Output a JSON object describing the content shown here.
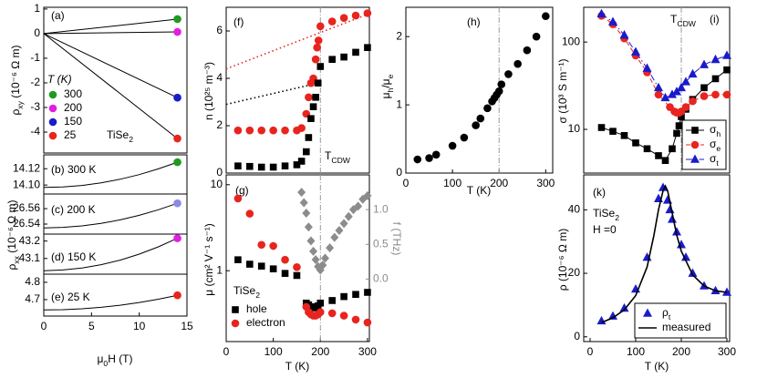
{
  "chart_data": [
    {
      "type": "line",
      "label": "(a)",
      "xlim": [
        0,
        15
      ],
      "ylim": [
        -4.85,
        1.07
      ],
      "yticks": [
        1,
        0,
        -1,
        -2,
        -3,
        -4
      ],
      "ylabel": [
        "ρ",
        "xy",
        " (10⁻⁶ Ω m)"
      ],
      "legend_title": "T (K)",
      "annotations": [
        [
          "TiSe",
          "2"
        ]
      ],
      "series": [
        {
          "name": "300",
          "color": "#1f9a1f",
          "line_color": "#000",
          "marker": "circle",
          "end_marker": true,
          "line": "solid",
          "x": [
            0,
            14
          ],
          "values": [
            0,
            0.59
          ]
        },
        {
          "name": "200",
          "color": "#e020e0",
          "line_color": "#000",
          "marker": "circle",
          "end_marker": true,
          "line": "solid",
          "x": [
            0,
            14
          ],
          "values": [
            0,
            0.07
          ]
        },
        {
          "name": "150",
          "color": "#1a1acc",
          "line_color": "#000",
          "marker": "circle",
          "end_marker": true,
          "line": "solid",
          "x": [
            0,
            14
          ],
          "values": [
            0,
            -2.6
          ]
        },
        {
          "name": "25",
          "color": "#e8241f",
          "line_color": "#000",
          "marker": "circle",
          "end_marker": true,
          "line": "solid",
          "x": [
            0,
            14
          ],
          "values": [
            0,
            -4.26
          ]
        }
      ]
    },
    {
      "type": "line",
      "label": "(b) 300 K",
      "xlim": [
        0,
        15
      ],
      "ylim": [
        14.089,
        14.137
      ],
      "yticks": [
        {
          "value": 14.1,
          "label": "14.10"
        },
        14.12
      ],
      "series": [
        {
          "color": "#1f9a1f",
          "line_color": "#000",
          "marker": "circle",
          "end_marker": true,
          "line": "solid",
          "x": [
            0,
            2,
            4,
            6,
            8,
            10,
            12,
            14
          ],
          "values": [
            14.097,
            14.0976,
            14.0995,
            14.1027,
            14.1071,
            14.1128,
            14.1198,
            14.128
          ]
        }
      ]
    },
    {
      "type": "line",
      "label": "(c) 200 K",
      "xlim": [
        0,
        15
      ],
      "ylim": [
        26.527,
        26.579
      ],
      "yticks": [
        26.54,
        26.56
      ],
      "series": [
        {
          "color": "#8a8ae8",
          "line_color": "#000",
          "marker": "circle",
          "end_marker": true,
          "line": "solid",
          "x": [
            0,
            2,
            4,
            6,
            8,
            10,
            12,
            14
          ],
          "values": [
            26.535,
            26.5357,
            26.5376,
            26.5409,
            26.5454,
            26.5513,
            26.5585,
            26.567
          ]
        }
      ]
    },
    {
      "type": "line",
      "label": "(d) 150 K",
      "xlim": [
        0,
        15
      ],
      "ylim": [
        43.01,
        43.24
      ],
      "yticks": [
        43.1,
        43.2
      ],
      "series": [
        {
          "color": "#e020e0",
          "line_color": "#000",
          "marker": "circle",
          "end_marker": true,
          "line": "solid",
          "x": [
            0,
            2,
            4,
            6,
            8,
            10,
            12,
            14
          ],
          "values": [
            43.03,
            43.0338,
            43.0452,
            43.0642,
            43.0907,
            43.1249,
            43.1666,
            43.216
          ]
        }
      ]
    },
    {
      "type": "line",
      "label": "(e)  25 K",
      "xlim": [
        0,
        15
      ],
      "ylim": [
        4.605,
        4.847
      ],
      "yticks": [
        4.7,
        4.8
      ],
      "xticks": [
        0,
        5,
        10,
        15
      ],
      "ylabel": [
        "ρ",
        "xx",
        " (10⁻⁶ Ω m)"
      ],
      "xlabel": [
        "μ",
        "0",
        "H (T)"
      ],
      "series": [
        {
          "color": "#e8241f",
          "line_color": "#000",
          "marker": "circle",
          "end_marker": true,
          "line": "solid",
          "x": [
            0,
            2,
            4,
            6,
            8,
            10,
            12,
            14
          ],
          "values": [
            4.64,
            4.6417,
            4.6469,
            4.6556,
            4.6678,
            4.6834,
            4.7024,
            4.725
          ]
        }
      ]
    },
    {
      "type": "scatter",
      "label": "(f)",
      "xlim": [
        0,
        304
      ],
      "ylim": [
        0,
        7
      ],
      "yticks": [
        0,
        2,
        4,
        6
      ],
      "cdw_line": 200,
      "ylabel": "n (10²⁵ m⁻³)",
      "annotations": [
        [
          "T",
          "CDW"
        ]
      ],
      "series": [
        {
          "color": "#e8241f",
          "marker": "none",
          "line": "dotted",
          "x": [
            0,
            300
          ],
          "values": [
            4.4,
            6.7
          ]
        },
        {
          "color": "#000",
          "marker": "none",
          "line": "dotted",
          "x": [
            0,
            185
          ],
          "values": [
            2.9,
            3.75
          ]
        },
        {
          "color": "#e8241f",
          "marker": "circle",
          "x": [
            25,
            50,
            75,
            100,
            125,
            150,
            160,
            170,
            175,
            180,
            185,
            190,
            193,
            196,
            200,
            225,
            250,
            275,
            300
          ],
          "values": [
            1.8,
            1.8,
            1.8,
            1.8,
            1.8,
            1.8,
            1.9,
            2.5,
            3.2,
            3.8,
            4.0,
            4.8,
            5.3,
            5.6,
            6.2,
            6.4,
            6.55,
            6.65,
            6.75
          ]
        },
        {
          "color": "#000",
          "marker": "square",
          "x": [
            25,
            50,
            75,
            100,
            125,
            150,
            160,
            170,
            175,
            180,
            185,
            190,
            195,
            200,
            225,
            250,
            275,
            300
          ],
          "values": [
            0.3,
            0.28,
            0.25,
            0.25,
            0.3,
            0.35,
            0.5,
            0.9,
            1.5,
            2.3,
            2.8,
            3.2,
            3.8,
            4.5,
            4.8,
            4.9,
            5.1,
            5.3
          ]
        }
      ]
    },
    {
      "type": "scatter",
      "label": "(g)",
      "xlim": [
        0,
        304
      ],
      "ylim": [
        0.15,
        13
      ],
      "log_y": true,
      "yticks": [
        1,
        10
      ],
      "xticks": [
        0,
        100,
        200,
        300
      ],
      "cdw_line": 200,
      "y2lim": [
        -0.9,
        1.5
      ],
      "y2ticks": [
        {
          "value": 0,
          "label": "0.0"
        },
        {
          "value": 0.5,
          "label": "0.5"
        },
        {
          "value": 1,
          "label": "1.0"
        }
      ],
      "y2label": "f (THz)",
      "y2color": "#8c8c8c",
      "ylabel": "μ (cm² V⁻¹ s⁻¹)",
      "xlabel": "T (K)",
      "annotations": [
        [
          "TiSe",
          "2"
        ]
      ],
      "series": [
        {
          "name": "hole",
          "color": "#000",
          "marker": "square",
          "x": [
            25,
            50,
            75,
            100,
            125,
            150,
            170,
            175,
            180,
            185,
            190,
            195,
            200,
            225,
            250,
            275,
            300
          ],
          "values": [
            1.34,
            1.19,
            1.13,
            1.05,
            0.93,
            0.88,
            0.42,
            0.4,
            0.38,
            0.38,
            0.37,
            0.39,
            0.42,
            0.45,
            0.5,
            0.53,
            0.56
          ]
        },
        {
          "name": "electron",
          "color": "#e8241f",
          "marker": "circle",
          "x": [
            25,
            50,
            75,
            100,
            125,
            150,
            170,
            175,
            180,
            185,
            190,
            195,
            200,
            225,
            250,
            275,
            300
          ],
          "values": [
            6.9,
            4.6,
            2.0,
            1.94,
            1.34,
            1.1,
            0.38,
            0.33,
            0.31,
            0.3,
            0.3,
            0.31,
            0.33,
            0.32,
            0.3,
            0.27,
            0.25
          ]
        },
        {
          "color": "#8c8c8c",
          "marker": "diamond",
          "axis": "y2",
          "x": [
            160,
            165,
            170,
            175,
            180,
            185,
            190,
            195,
            200,
            205,
            210,
            220,
            230,
            240,
            250,
            260,
            270,
            280,
            290,
            300
          ],
          "values": [
            1.25,
            1.1,
            0.95,
            0.75,
            0.55,
            0.4,
            0.28,
            0.18,
            0.13,
            0.2,
            0.3,
            0.45,
            0.6,
            0.7,
            0.8,
            0.9,
            1.0,
            1.05,
            1.15,
            1.2
          ]
        }
      ]
    },
    {
      "type": "scatter",
      "label": "(h)",
      "xlim": [
        0,
        315
      ],
      "ylim": [
        0,
        2.43
      ],
      "yticks": [
        0,
        1,
        2
      ],
      "xticks": [
        0,
        100,
        200,
        300
      ],
      "cdw_line": 200,
      "ylabel": [
        "μ",
        "h",
        "/μ",
        "e"
      ],
      "xlabel": "T (K)",
      "series": [
        {
          "color": "#000",
          "marker": "circle",
          "x": [
            25,
            50,
            65,
            100,
            125,
            150,
            160,
            175,
            185,
            190,
            195,
            200,
            205,
            220,
            240,
            260,
            280,
            300
          ],
          "values": [
            0.2,
            0.22,
            0.27,
            0.4,
            0.52,
            0.7,
            0.8,
            0.95,
            1.05,
            1.1,
            1.15,
            1.2,
            1.3,
            1.45,
            1.6,
            1.8,
            2.0,
            2.3
          ]
        }
      ]
    },
    {
      "type": "scatter",
      "label": "(i)",
      "xlim": [
        -14,
        306
      ],
      "ylim": [
        3.16,
        250
      ],
      "log_y": true,
      "yticks": [
        10,
        100
      ],
      "cdw_line": 200,
      "ylabel": "σ (10³ S m⁻¹)",
      "annotations": [
        [
          "T",
          "CDW"
        ]
      ],
      "legend": "lower right",
      "series": [
        {
          "name": [
            "σ",
            "h"
          ],
          "color": "#000",
          "marker": "square",
          "line": "solid",
          "x": [
            25,
            50,
            75,
            100,
            125,
            150,
            165,
            180,
            190,
            195,
            200,
            210,
            225,
            250,
            275,
            300
          ],
          "values": [
            10.5,
            9.5,
            8.5,
            7,
            6,
            5,
            4.4,
            6,
            9,
            11,
            14,
            17,
            22,
            30,
            38,
            48
          ]
        },
        {
          "name": [
            "σ",
            "e"
          ],
          "color": "#e8241f",
          "marker": "circle",
          "line": "dashed",
          "x": [
            25,
            50,
            75,
            100,
            125,
            150,
            175,
            185,
            190,
            195,
            200,
            210,
            225,
            250,
            275,
            300
          ],
          "values": [
            200,
            160,
            110,
            70,
            45,
            25,
            18,
            16,
            15.5,
            15.5,
            16,
            18,
            21,
            24,
            25,
            25
          ]
        },
        {
          "name": [
            "σ",
            "t"
          ],
          "color": "#1a1acc",
          "marker": "triangle",
          "line": "dashdot",
          "x": [
            25,
            50,
            75,
            100,
            125,
            150,
            165,
            180,
            190,
            200,
            210,
            225,
            250,
            275,
            300
          ],
          "values": [
            210,
            170,
            120,
            77,
            50,
            30,
            23,
            25,
            27,
            30,
            35,
            43,
            55,
            63,
            70
          ]
        }
      ]
    },
    {
      "type": "scatter",
      "label": "(k)",
      "xlim": [
        -14,
        306
      ],
      "ylim": [
        -1.5,
        51
      ],
      "yticks": [
        0,
        20,
        40
      ],
      "xticks": [
        0,
        100,
        200,
        300
      ],
      "ylabel": "ρ (10⁻⁶ Ω m)",
      "xlabel": "T (K)",
      "annotations": [
        [
          "TiSe",
          "2"
        ],
        "H =0"
      ],
      "legend": "lower right",
      "series": [
        {
          "name": [
            "ρ",
            "t"
          ],
          "color": "#1a1acc",
          "marker": "triangle",
          "x": [
            25,
            50,
            75,
            100,
            125,
            150,
            160,
            170,
            175,
            180,
            190,
            200,
            210,
            225,
            250,
            275,
            300
          ],
          "values": [
            5,
            6.5,
            9,
            15,
            25,
            43.5,
            47,
            43,
            40,
            37,
            33,
            29,
            25,
            20,
            16,
            14.5,
            14
          ]
        },
        {
          "name": "measured",
          "color": "#000",
          "marker": "none",
          "line": "solid",
          "x": [
            25,
            50,
            75,
            100,
            125,
            140,
            150,
            160,
            165,
            170,
            180,
            190,
            200,
            225,
            250,
            275,
            300
          ],
          "values": [
            4.5,
            6,
            8.5,
            13,
            22,
            32,
            40,
            46,
            47.5,
            46,
            39,
            32,
            27,
            19.5,
            16,
            14.5,
            14
          ]
        }
      ]
    }
  ]
}
